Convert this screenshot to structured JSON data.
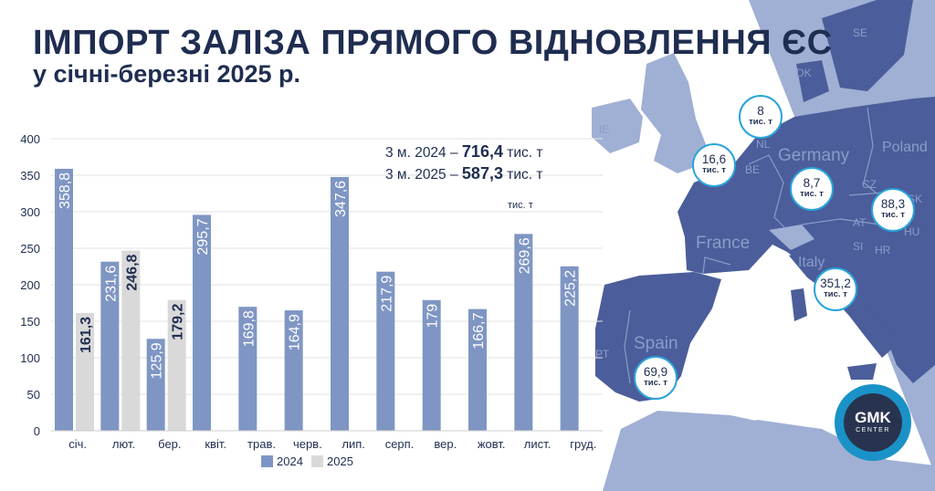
{
  "header": {
    "title": "ІМПОРТ ЗАЛІЗА ПРЯМОГО ВІДНОВЛЕННЯ ЄС",
    "subtitle": "у січні-березні 2025 р."
  },
  "totals": {
    "line1_prefix": "3 м. 2024 – ",
    "line1_value": "716,4",
    "line1_suffix": " тис. т",
    "line2_prefix": "3 м. 2025 – ",
    "line2_value": "587,3",
    "line2_suffix": " тис. т"
  },
  "unit_label": "тис. т",
  "chart_data": {
    "type": "bar",
    "categories": [
      "січ.",
      "лют.",
      "бер.",
      "квіт.",
      "трав.",
      "черв.",
      "лип.",
      "серп.",
      "вер.",
      "жовт.",
      "лист.",
      "груд."
    ],
    "series": [
      {
        "name": "2024",
        "color": "#7f96c4",
        "values": [
          358.8,
          231.6,
          125.9,
          295.7,
          169.8,
          164.9,
          347.6,
          217.9,
          179,
          166.7,
          269.6,
          225.2
        ],
        "labels": [
          "358,8",
          "231,6",
          "125,9",
          "295,7",
          "169,8",
          "164,9",
          "347,6",
          "217,9",
          "179",
          "166,7",
          "269,6",
          "225,2"
        ]
      },
      {
        "name": "2025",
        "color": "#d9d9d9",
        "values": [
          161.3,
          246.8,
          179.2,
          null,
          null,
          null,
          null,
          null,
          null,
          null,
          null,
          null
        ],
        "labels": [
          "161,3",
          "246,8",
          "179,2",
          "",
          "",
          "",
          "",
          "",
          "",
          "",
          "",
          ""
        ]
      }
    ],
    "ylim": [
      0,
      400
    ],
    "yticks": [
      0,
      50,
      100,
      150,
      200,
      250,
      300,
      350,
      400
    ],
    "grid": true,
    "legend": "bottom"
  },
  "map": {
    "colors": {
      "sea": "#ffffff",
      "land": "#9fb0d4",
      "eu": "#4b5d9a",
      "border": "#8b9cc9"
    },
    "countries": [
      "Germany",
      "Poland",
      "France",
      "Spain",
      "Italy",
      "NL",
      "BE",
      "CZ",
      "SK",
      "AT",
      "HU",
      "SI",
      "HR",
      "PT",
      "DK",
      "SE",
      "IE"
    ],
    "bubbles": [
      {
        "country": "NL",
        "value": "8",
        "unit": "тис. т"
      },
      {
        "country": "BE",
        "value": "16,6",
        "unit": "тис. т"
      },
      {
        "country": "Germany",
        "value": "8,7",
        "unit": "тис. т"
      },
      {
        "country": "AT",
        "value": "88,3",
        "unit": "тис. т"
      },
      {
        "country": "Italy",
        "value": "351,2",
        "unit": "тис. т"
      },
      {
        "country": "Spain",
        "value": "69,9",
        "unit": "тис. т"
      }
    ]
  },
  "logo": {
    "line1": "GMK",
    "line2": "CENTER"
  },
  "accent": "#2aa3da"
}
